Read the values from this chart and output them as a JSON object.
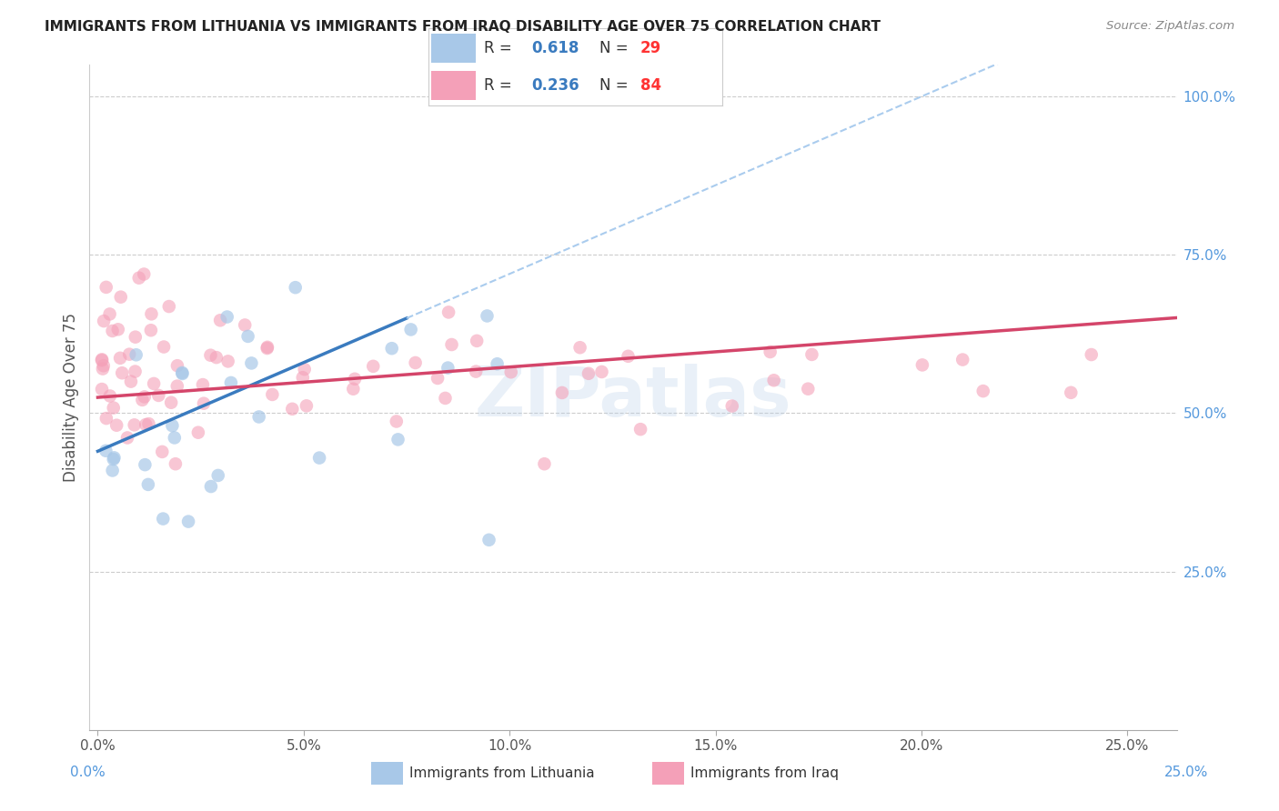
{
  "title": "IMMIGRANTS FROM LITHUANIA VS IMMIGRANTS FROM IRAQ DISABILITY AGE OVER 75 CORRELATION CHART",
  "source": "Source: ZipAtlas.com",
  "ylabel": "Disability Age Over 75",
  "r_lithuania": "0.618",
  "n_lithuania": "29",
  "r_iraq": "0.236",
  "n_iraq": "84",
  "color_lithuania": "#a8c8e8",
  "color_iraq": "#f4a0b8",
  "color_line_lithuania": "#3a7bbf",
  "color_line_iraq": "#d4456a",
  "color_right_axis": "#5599dd",
  "watermark": "ZIPatlas",
  "legend_all_color": "#5599dd",
  "legend_text_color": "#5599dd",
  "xlim_max": 0.25,
  "ylim_max": 1.0
}
